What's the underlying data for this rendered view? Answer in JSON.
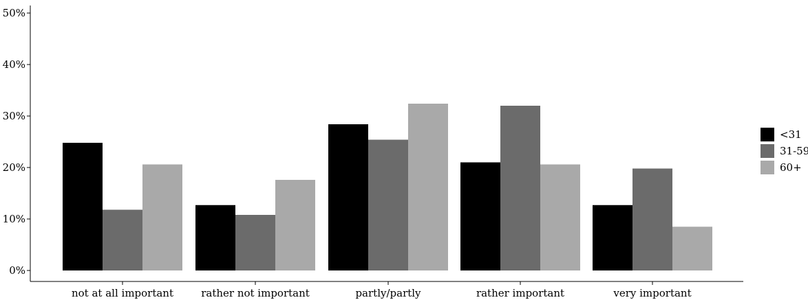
{
  "chart_data": {
    "type": "bar",
    "categories": [
      "not at all important",
      "rather not important",
      "partly/partly",
      "rather important",
      "very important"
    ],
    "series": [
      {
        "name": "<31",
        "color": "#000000",
        "values": [
          24.8,
          12.7,
          28.4,
          21.0,
          12.7
        ]
      },
      {
        "name": "31-59",
        "color": "#6b6b6b",
        "values": [
          11.8,
          10.8,
          25.4,
          32.0,
          19.8
        ]
      },
      {
        "name": "60+",
        "color": "#a9a9a9",
        "values": [
          20.6,
          17.6,
          32.4,
          20.6,
          8.5
        ]
      }
    ],
    "ylim": [
      0,
      50
    ],
    "yticks": [
      0,
      10,
      20,
      30,
      40,
      50
    ],
    "ytick_labels": [
      "0%",
      "10%",
      "20%",
      "30%",
      "40%",
      "50%"
    ],
    "title": "",
    "xlabel": "",
    "ylabel": "",
    "grid": false,
    "legend_position": "right"
  }
}
